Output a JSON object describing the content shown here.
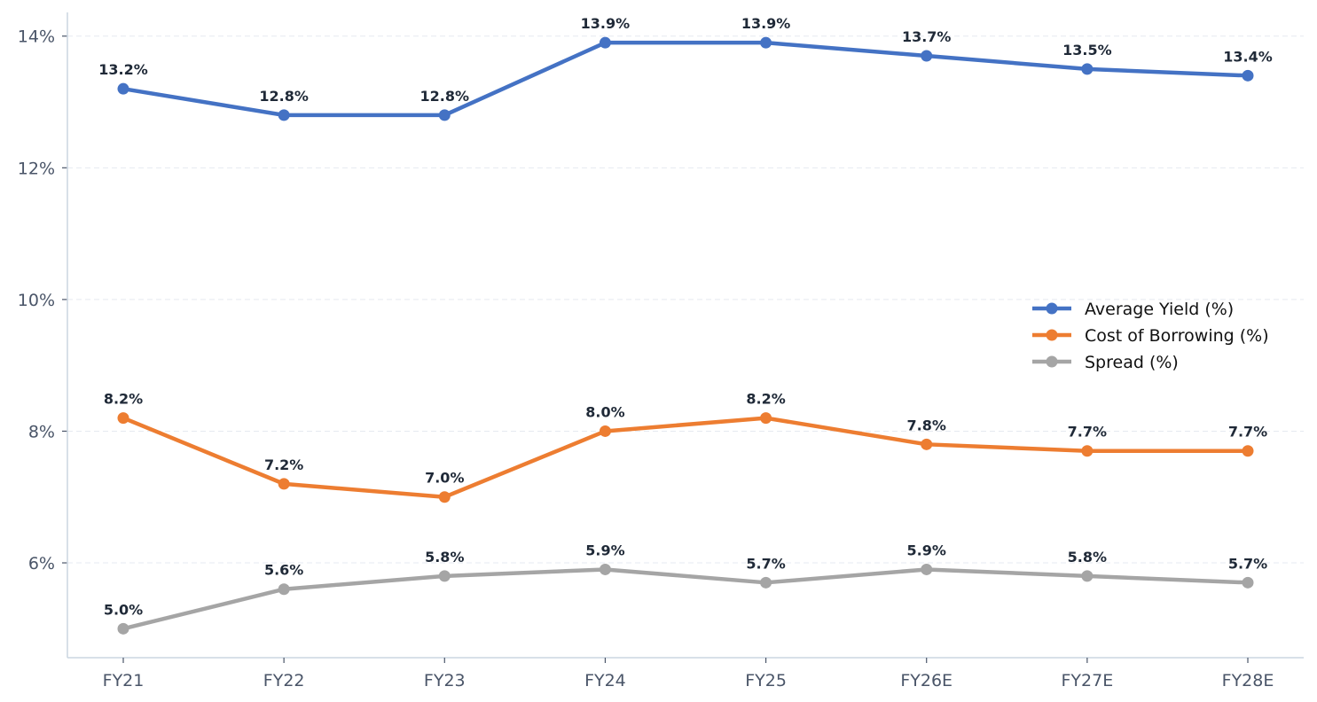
{
  "chart_data": {
    "type": "line",
    "title": "",
    "xlabel": "",
    "ylabel": "",
    "categories": [
      "FY21",
      "FY22",
      "FY23",
      "FY24",
      "FY25",
      "FY26E",
      "FY27E",
      "FY28E"
    ],
    "ylim": [
      4.56,
      14.36
    ],
    "yticks": [
      6,
      8,
      10,
      12,
      14
    ],
    "ytick_labels": [
      "6%",
      "8%",
      "10%",
      "12%",
      "14%"
    ],
    "grid": "horizontal dashed",
    "legend": "right",
    "series": [
      {
        "name": "Average Yield (%)",
        "color": "#4472C4",
        "values": [
          13.2,
          12.8,
          12.8,
          13.9,
          13.9,
          13.7,
          13.5,
          13.4
        ],
        "labels": [
          "13.2%",
          "12.8%",
          "12.8%",
          "13.9%",
          "13.9%",
          "13.7%",
          "13.5%",
          "13.4%"
        ]
      },
      {
        "name": "Cost of Borrowing (%)",
        "color": "#ED7D31",
        "values": [
          8.2,
          7.2,
          7.0,
          8.0,
          8.2,
          7.8,
          7.7,
          7.7
        ],
        "labels": [
          "8.2%",
          "7.2%",
          "7.0%",
          "8.0%",
          "8.2%",
          "7.8%",
          "7.7%",
          "7.7%"
        ]
      },
      {
        "name": "Spread (%)",
        "color": "#A5A5A5",
        "values": [
          5.0,
          5.6,
          5.8,
          5.9,
          5.7,
          5.9,
          5.8,
          5.7
        ],
        "labels": [
          "5.0%",
          "5.6%",
          "5.8%",
          "5.9%",
          "5.7%",
          "5.9%",
          "5.8%",
          "5.7%"
        ]
      }
    ]
  }
}
